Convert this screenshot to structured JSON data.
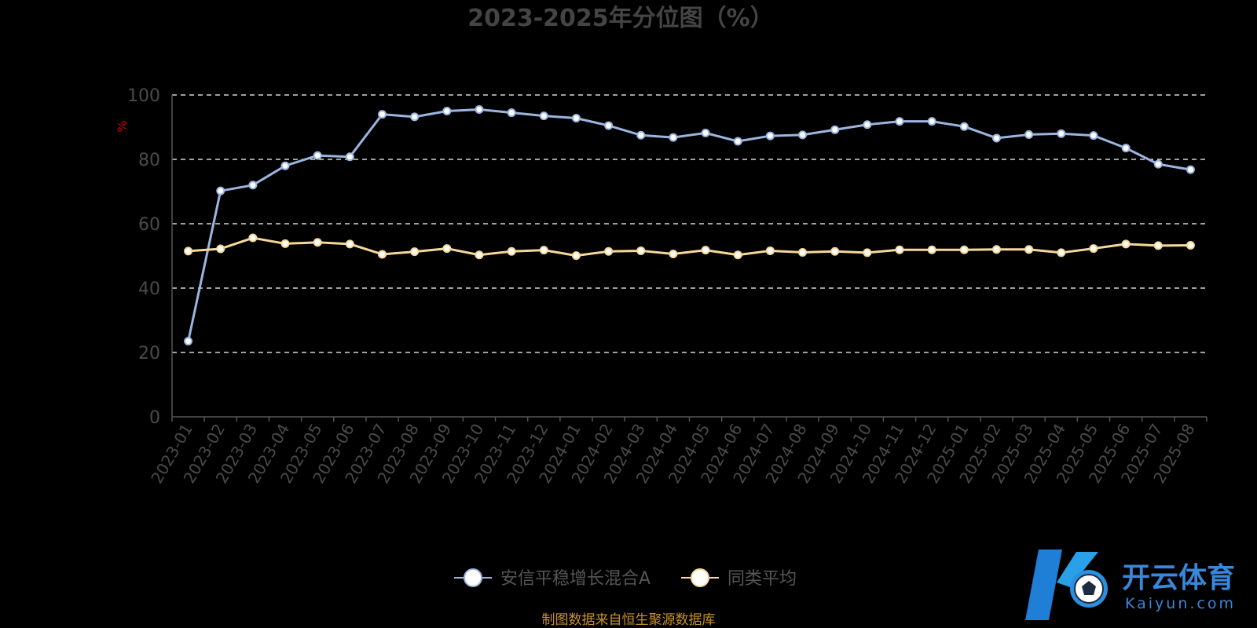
{
  "chart_data": {
    "type": "line",
    "title": "2023-2025年分位图（%）",
    "ylabel": "%",
    "xlabel": "",
    "ylim": [
      0,
      100
    ],
    "yticks": [
      0,
      20,
      40,
      60,
      80,
      100
    ],
    "grid": true,
    "legend_position": "bottom-center",
    "categories": [
      "2023-01",
      "2023-02",
      "2023-03",
      "2023-04",
      "2023-05",
      "2023-06",
      "2023-07",
      "2023-08",
      "2023-09",
      "2023-10",
      "2023-11",
      "2023-12",
      "2024-01",
      "2024-02",
      "2024-03",
      "2024-04",
      "2024-05",
      "2024-06",
      "2024-07",
      "2024-08",
      "2024-09",
      "2024-10",
      "2024-11",
      "2024-12",
      "2025-01",
      "2025-02",
      "2025-03",
      "2025-04",
      "2025-05",
      "2025-06",
      "2025-07",
      "2025-08"
    ],
    "series": [
      {
        "name": "安信平稳增长混合A",
        "color": "#9bb5e0",
        "values": [
          23.5,
          70.2,
          72.0,
          78.0,
          81.2,
          80.8,
          94.0,
          93.2,
          95.0,
          95.5,
          94.5,
          93.5,
          92.8,
          90.5,
          87.5,
          86.8,
          88.2,
          85.6,
          87.3,
          87.6,
          89.2,
          90.8,
          91.8,
          91.8,
          90.2,
          86.6,
          87.7,
          88.0,
          87.4,
          83.5,
          78.5,
          76.8
        ]
      },
      {
        "name": "同类平均",
        "color": "#f5d89a",
        "values": [
          51.5,
          52.2,
          55.6,
          53.8,
          54.2,
          53.7,
          50.5,
          51.3,
          52.3,
          50.3,
          51.4,
          51.8,
          50.1,
          51.4,
          51.6,
          50.6,
          51.8,
          50.3,
          51.6,
          51.1,
          51.4,
          51.0,
          51.9,
          51.9,
          51.9,
          52.0,
          52.0,
          51.0,
          52.3,
          53.7,
          53.2,
          53.3
        ]
      }
    ]
  },
  "footer": "制图数据来自恒生聚源数据库",
  "watermark": {
    "name": "开云体育",
    "domain": "Kaiyun.com"
  }
}
